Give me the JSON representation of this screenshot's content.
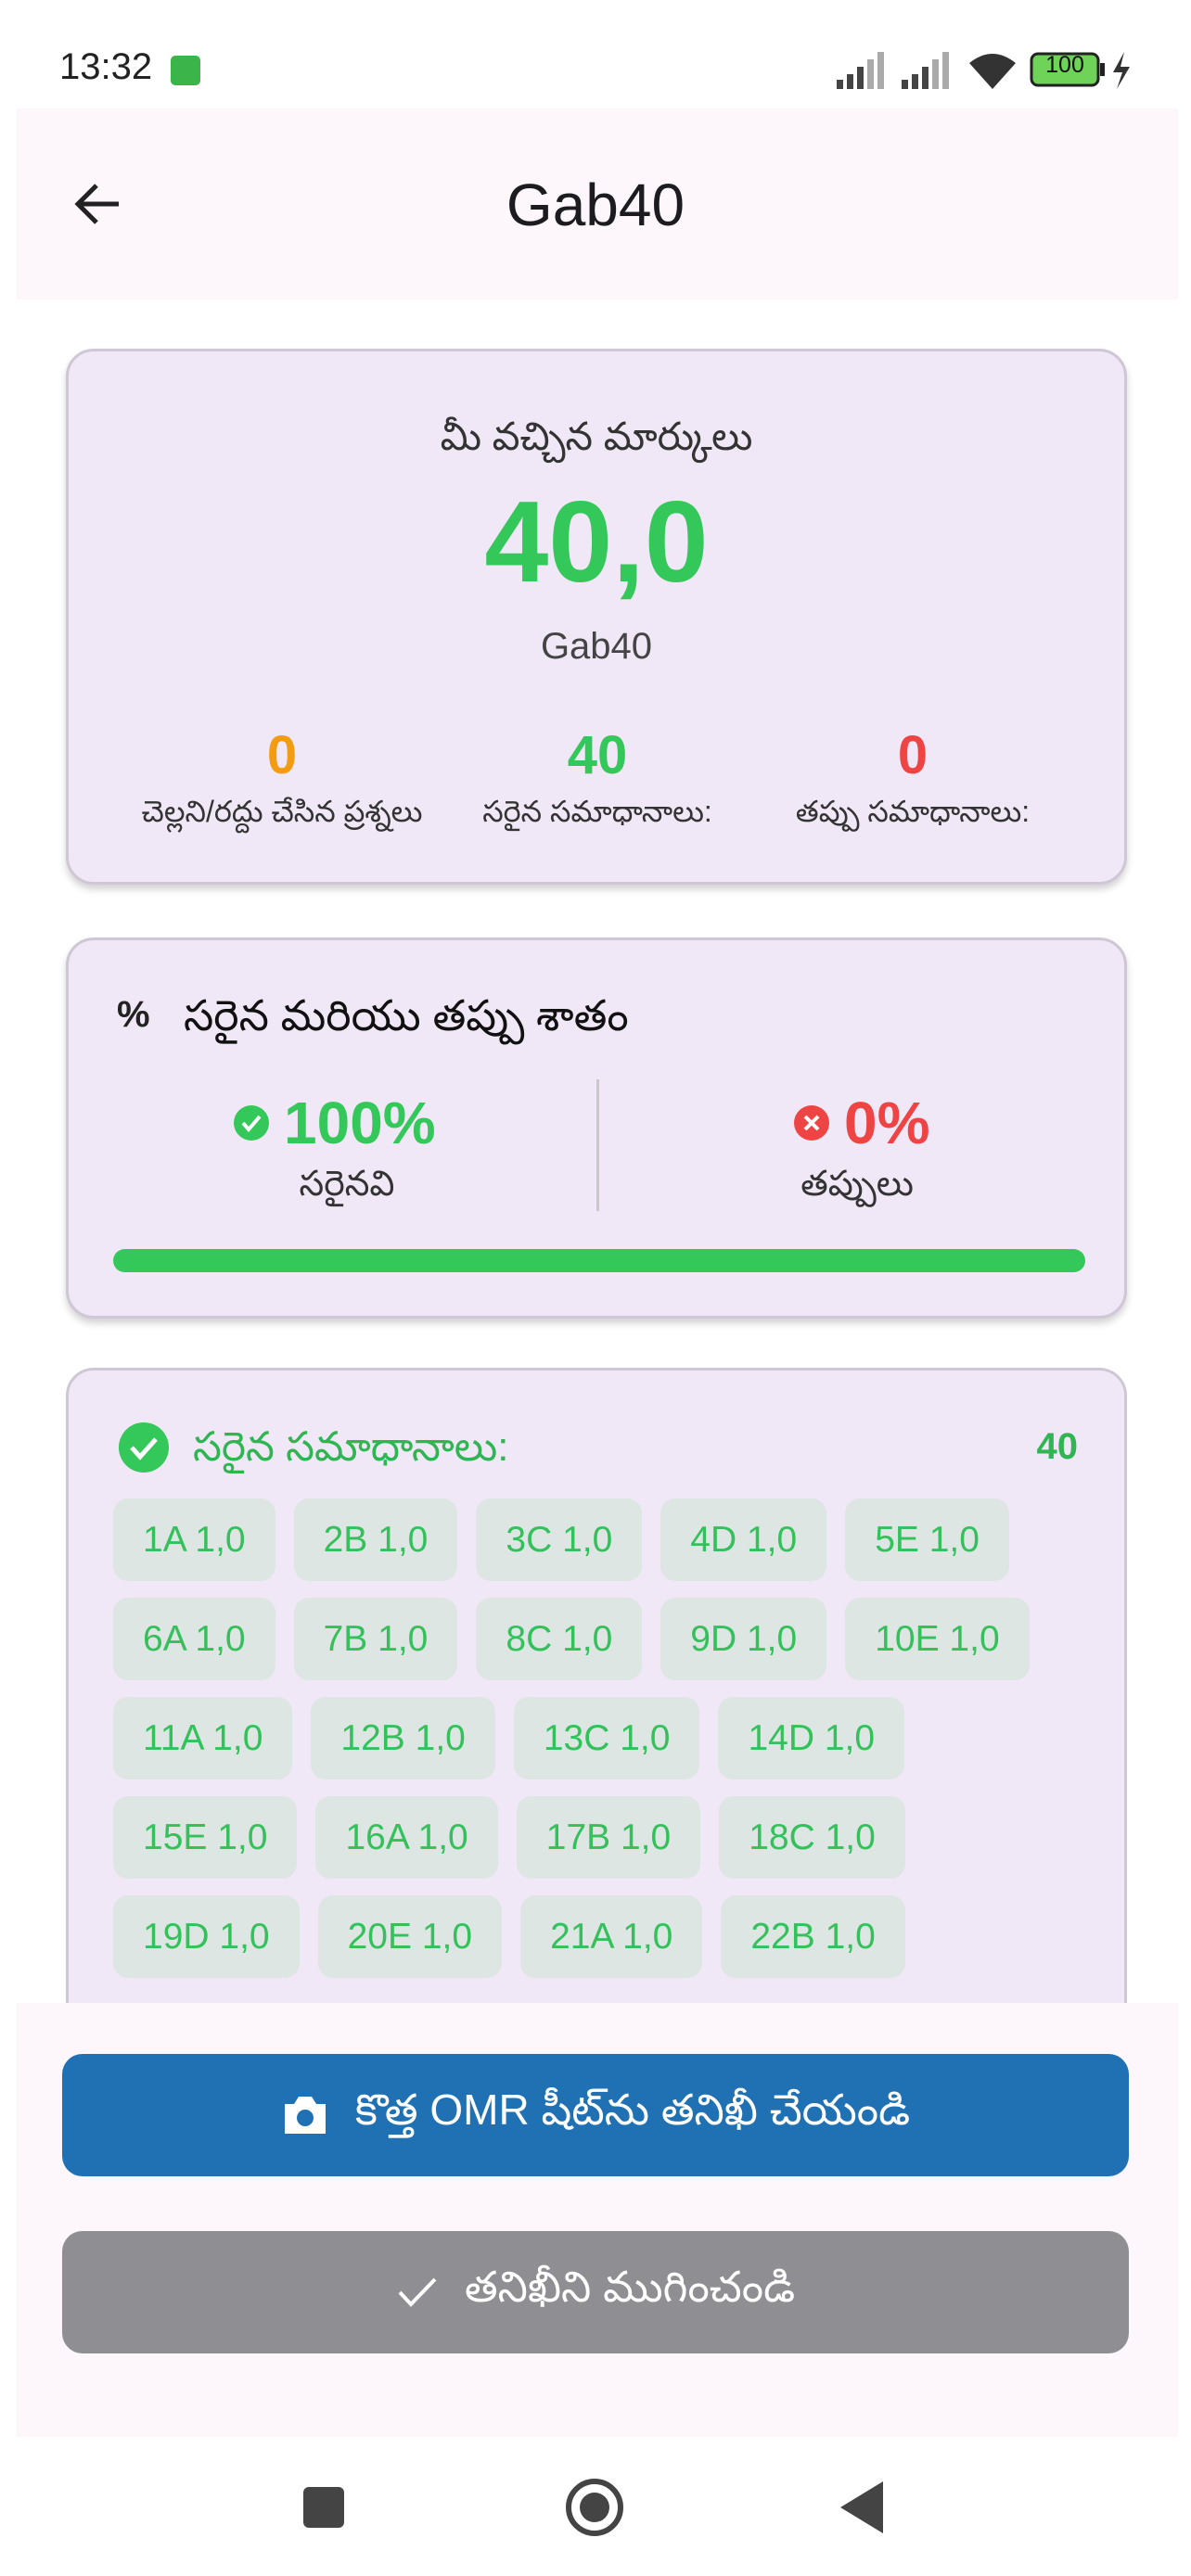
{
  "status_bar": {
    "time": "13:32",
    "battery": "100"
  },
  "header": {
    "title": "Gab40"
  },
  "score_card": {
    "heading": "మీ వచ్చిన మార్కులు",
    "score": "40,0",
    "exam": "Gab40",
    "stats": [
      {
        "value": "0",
        "label": "చెల్లని/రద్దు చేసిన ప్రశ్నలు"
      },
      {
        "value": "40",
        "label": "సరైన సమాధానాలు:"
      },
      {
        "value": "0",
        "label": "తప్పు సమాధానాలు:"
      }
    ]
  },
  "percent_card": {
    "icon": "%",
    "title": "సరైన మరియు తప్పు శాతం",
    "correct": {
      "value": "100%",
      "label": "సరైనవి"
    },
    "wrong": {
      "value": "0%",
      "label": "తప్పులు"
    }
  },
  "answers_card": {
    "title": "సరైన సమాధానాలు:",
    "count": "40",
    "chips": [
      "1A 1,0",
      "2B 1,0",
      "3C 1,0",
      "4D 1,0",
      "5E 1,0",
      "6A 1,0",
      "7B 1,0",
      "8C 1,0",
      "9D 1,0",
      "10E 1,0",
      "11A 1,0",
      "12B 1,0",
      "13C 1,0",
      "14D 1,0",
      "15E 1,0",
      "16A 1,0",
      "17B 1,0",
      "18C 1,0",
      "19D 1,0",
      "20E 1,0",
      "21A 1,0",
      "22B 1,0"
    ]
  },
  "buttons": {
    "scan": "కొత్త OMR షీట్‌ను తనిఖీ చేయండి",
    "finish": "తనిఖీని ముగించండి"
  }
}
